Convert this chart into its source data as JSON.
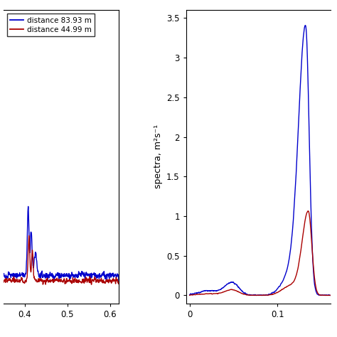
{
  "legend_labels": [
    "distance 83.93 m",
    "distance 44.99 m"
  ],
  "colors": [
    "#0000cc",
    "#aa0000"
  ],
  "left_xlim": [
    0.35,
    0.62
  ],
  "left_ylim": [
    -0.002,
    0.05
  ],
  "left_xticks": [
    0.4,
    0.5,
    0.6
  ],
  "right_xlim": [
    -0.004,
    0.16
  ],
  "right_ylim": [
    -0.1,
    3.6
  ],
  "right_yticks": [
    0,
    0.5,
    1.0,
    1.5,
    2.0,
    2.5,
    3.0,
    3.5
  ],
  "right_xticks": [
    0,
    0.1
  ],
  "right_ylabel": "spectra, m²s⁻¹",
  "background_color": "#ffffff",
  "line_width": 1.0
}
